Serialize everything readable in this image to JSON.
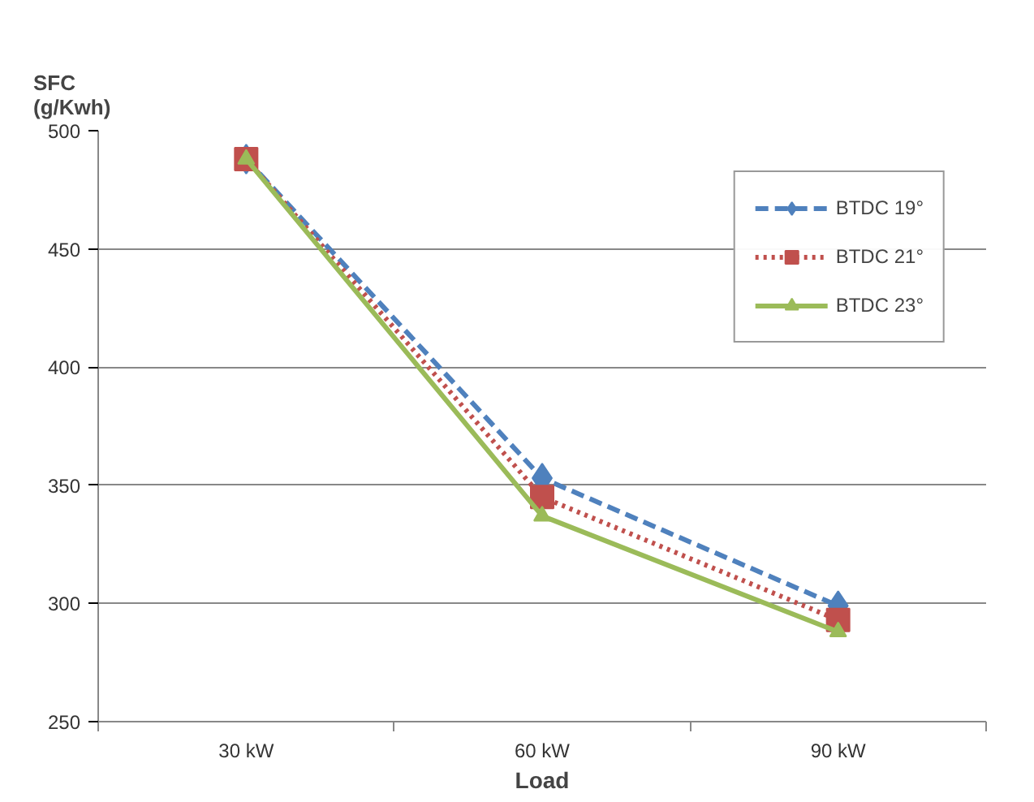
{
  "chart_data": {
    "type": "line",
    "xlabel": "Load",
    "ylabel": "SFC (g/Kwh)",
    "categories": [
      "30 kW",
      "60 kW",
      "90 kW"
    ],
    "series": [
      {
        "name": "BTDC 19°",
        "color": "#4f81bd",
        "values": [
          488,
          353,
          299
        ],
        "marker": "diamond",
        "line_style": "dashed"
      },
      {
        "name": "BTDC 21°",
        "color": "#c0504d",
        "values": [
          488,
          345,
          293
        ],
        "marker": "square",
        "line_style": "dotted"
      },
      {
        "name": "BTDC 23°",
        "color": "#9bbb59",
        "values": [
          488,
          337,
          288
        ],
        "marker": "triangle",
        "line_style": "solid"
      }
    ],
    "ylim": [
      250,
      500
    ],
    "yticks": [
      250,
      300,
      350,
      400,
      450,
      500
    ],
    "grid": "y",
    "legend": "top right"
  }
}
